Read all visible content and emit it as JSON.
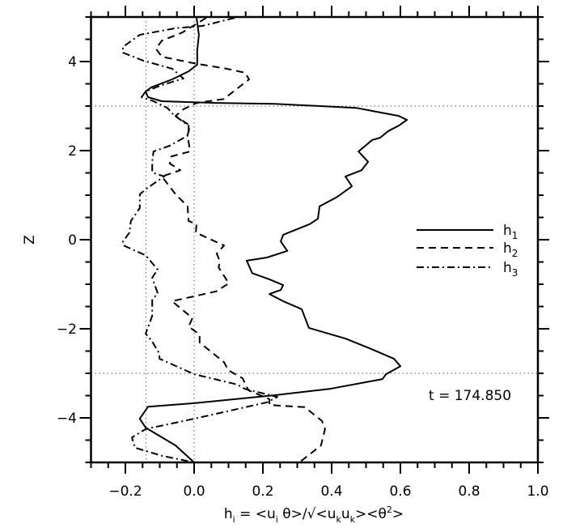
{
  "chart_data": {
    "type": "line",
    "title": "",
    "ylabel": "Z",
    "xlabel_parts": [
      "h",
      "i",
      " = <u",
      "i",
      " θ>/√<u",
      "k",
      "u",
      "k",
      "><θ",
      "2",
      ">"
    ],
    "xlim": [
      -0.3,
      1.0
    ],
    "ylim": [
      -5,
      5
    ],
    "x_ticks": [
      -0.2,
      0.0,
      0.2,
      0.4,
      0.6,
      0.8,
      1.0
    ],
    "x_tick_labels": [
      "−0.2",
      "0.0",
      "0.2",
      "0.4",
      "0.6",
      "0.8",
      "1.0"
    ],
    "y_ticks": [
      -4,
      -2,
      0,
      2,
      4
    ],
    "y_tick_labels": [
      "−4",
      "−2",
      "0",
      "2",
      "4"
    ],
    "reference_lines": {
      "vertical": [
        -0.14,
        0.0
      ],
      "horizontal": [
        -3,
        3
      ]
    },
    "legend_placement": "right",
    "annotation": "t = 174.850",
    "series": [
      {
        "name": "h",
        "sub": "1",
        "style": "solid",
        "points": [
          [
            0.007,
            4.98
          ],
          [
            0.014,
            4.6
          ],
          [
            0.009,
            4.24
          ],
          [
            0.009,
            3.93
          ],
          [
            -0.016,
            3.78
          ],
          [
            -0.064,
            3.6
          ],
          [
            -0.125,
            3.42
          ],
          [
            -0.141,
            3.33
          ],
          [
            -0.134,
            3.2
          ],
          [
            -0.094,
            3.11
          ],
          [
            0.064,
            3.07
          ],
          [
            0.235,
            3.05
          ],
          [
            0.471,
            2.96
          ],
          [
            0.518,
            2.89
          ],
          [
            0.595,
            2.78
          ],
          [
            0.619,
            2.69
          ],
          [
            0.595,
            2.56
          ],
          [
            0.565,
            2.44
          ],
          [
            0.541,
            2.29
          ],
          [
            0.518,
            2.24
          ],
          [
            0.478,
            1.98
          ],
          [
            0.506,
            1.75
          ],
          [
            0.487,
            1.56
          ],
          [
            0.44,
            1.42
          ],
          [
            0.459,
            1.2
          ],
          [
            0.416,
            0.96
          ],
          [
            0.365,
            0.75
          ],
          [
            0.36,
            0.47
          ],
          [
            0.336,
            0.35
          ],
          [
            0.259,
            0.11
          ],
          [
            0.252,
            -0.04
          ],
          [
            0.271,
            -0.25
          ],
          [
            0.212,
            -0.4
          ],
          [
            0.153,
            -0.47
          ],
          [
            0.169,
            -0.75
          ],
          [
            0.219,
            -0.89
          ],
          [
            0.259,
            -1.02
          ],
          [
            0.252,
            -1.13
          ],
          [
            0.219,
            -1.22
          ],
          [
            0.259,
            -1.38
          ],
          [
            0.313,
            -1.56
          ],
          [
            0.334,
            -1.98
          ],
          [
            0.44,
            -2.22
          ],
          [
            0.511,
            -2.44
          ],
          [
            0.581,
            -2.67
          ],
          [
            0.6,
            -2.84
          ],
          [
            0.558,
            -3.02
          ],
          [
            0.548,
            -3.13
          ],
          [
            0.393,
            -3.35
          ],
          [
            0.235,
            -3.49
          ],
          [
            0.0,
            -3.67
          ],
          [
            -0.134,
            -3.75
          ],
          [
            -0.158,
            -4.02
          ],
          [
            -0.141,
            -4.22
          ],
          [
            -0.054,
            -4.62
          ],
          [
            0.0,
            -5.0
          ]
        ]
      },
      {
        "name": "h",
        "sub": "2",
        "style": "dashed",
        "points": [
          [
            0.035,
            4.98
          ],
          [
            -0.035,
            4.65
          ],
          [
            -0.094,
            4.47
          ],
          [
            -0.111,
            4.29
          ],
          [
            -0.094,
            4.11
          ],
          [
            0.0,
            3.96
          ],
          [
            0.094,
            3.84
          ],
          [
            0.148,
            3.75
          ],
          [
            0.16,
            3.6
          ],
          [
            0.118,
            3.35
          ],
          [
            0.087,
            3.16
          ],
          [
            0.007,
            3.07
          ],
          [
            -0.031,
            2.93
          ],
          [
            -0.054,
            2.78
          ],
          [
            -0.012,
            2.56
          ],
          [
            -0.019,
            2.35
          ],
          [
            -0.012,
            1.98
          ],
          [
            -0.066,
            1.87
          ],
          [
            -0.071,
            1.71
          ],
          [
            -0.04,
            1.56
          ],
          [
            -0.094,
            1.42
          ],
          [
            -0.054,
            1.02
          ],
          [
            -0.019,
            0.75
          ],
          [
            -0.016,
            0.42
          ],
          [
            0.007,
            0.35
          ],
          [
            0.005,
            0.16
          ],
          [
            0.087,
            -0.13
          ],
          [
            0.066,
            -0.31
          ],
          [
            0.075,
            -0.49
          ],
          [
            0.071,
            -0.62
          ],
          [
            0.101,
            -0.98
          ],
          [
            0.064,
            -1.16
          ],
          [
            -0.064,
            -1.38
          ],
          [
            -0.047,
            -1.49
          ],
          [
            -0.005,
            -1.76
          ],
          [
            -0.016,
            -1.95
          ],
          [
            0.016,
            -2.13
          ],
          [
            0.016,
            -2.31
          ],
          [
            0.087,
            -2.75
          ],
          [
            0.099,
            -2.93
          ],
          [
            0.141,
            -3.11
          ],
          [
            0.158,
            -3.38
          ],
          [
            0.219,
            -3.58
          ],
          [
            0.219,
            -3.71
          ],
          [
            0.322,
            -3.76
          ],
          [
            0.372,
            -4.07
          ],
          [
            0.381,
            -4.25
          ],
          [
            0.369,
            -4.62
          ],
          [
            0.306,
            -5.0
          ]
        ]
      },
      {
        "name": "h",
        "sub": "3",
        "style": "dashdot",
        "points": [
          [
            0.118,
            4.98
          ],
          [
            0.024,
            4.8
          ],
          [
            -0.054,
            4.75
          ],
          [
            -0.158,
            4.6
          ],
          [
            -0.207,
            4.33
          ],
          [
            -0.207,
            4.2
          ],
          [
            -0.148,
            4.02
          ],
          [
            -0.064,
            3.84
          ],
          [
            -0.031,
            3.62
          ],
          [
            -0.094,
            3.47
          ],
          [
            -0.141,
            3.33
          ],
          [
            -0.153,
            3.2
          ],
          [
            -0.118,
            3.11
          ],
          [
            -0.078,
            2.96
          ],
          [
            -0.059,
            2.8
          ],
          [
            -0.016,
            2.56
          ],
          [
            -0.016,
            2.35
          ],
          [
            -0.071,
            2.11
          ],
          [
            -0.118,
            1.98
          ],
          [
            -0.122,
            1.75
          ],
          [
            -0.122,
            1.51
          ],
          [
            -0.087,
            1.42
          ],
          [
            -0.136,
            1.16
          ],
          [
            -0.158,
            1.02
          ],
          [
            -0.158,
            0.71
          ],
          [
            -0.184,
            0.42
          ],
          [
            -0.188,
            0.16
          ],
          [
            -0.207,
            -0.04
          ],
          [
            -0.205,
            -0.13
          ],
          [
            -0.141,
            -0.35
          ],
          [
            -0.106,
            -0.67
          ],
          [
            -0.122,
            -0.85
          ],
          [
            -0.106,
            -1.2
          ],
          [
            -0.122,
            -1.35
          ],
          [
            -0.122,
            -1.71
          ],
          [
            -0.141,
            -2.11
          ],
          [
            -0.122,
            -2.29
          ],
          [
            -0.101,
            -2.56
          ],
          [
            -0.101,
            -2.67
          ],
          [
            0.0,
            -3.02
          ],
          [
            0.125,
            -3.25
          ],
          [
            0.148,
            -3.35
          ],
          [
            0.242,
            -3.53
          ],
          [
            0.212,
            -3.65
          ],
          [
            0.0,
            -4.02
          ],
          [
            -0.141,
            -4.25
          ],
          [
            -0.181,
            -4.44
          ],
          [
            -0.172,
            -4.67
          ],
          [
            -0.094,
            -4.85
          ],
          [
            0.0,
            -5.0
          ]
        ]
      }
    ]
  }
}
